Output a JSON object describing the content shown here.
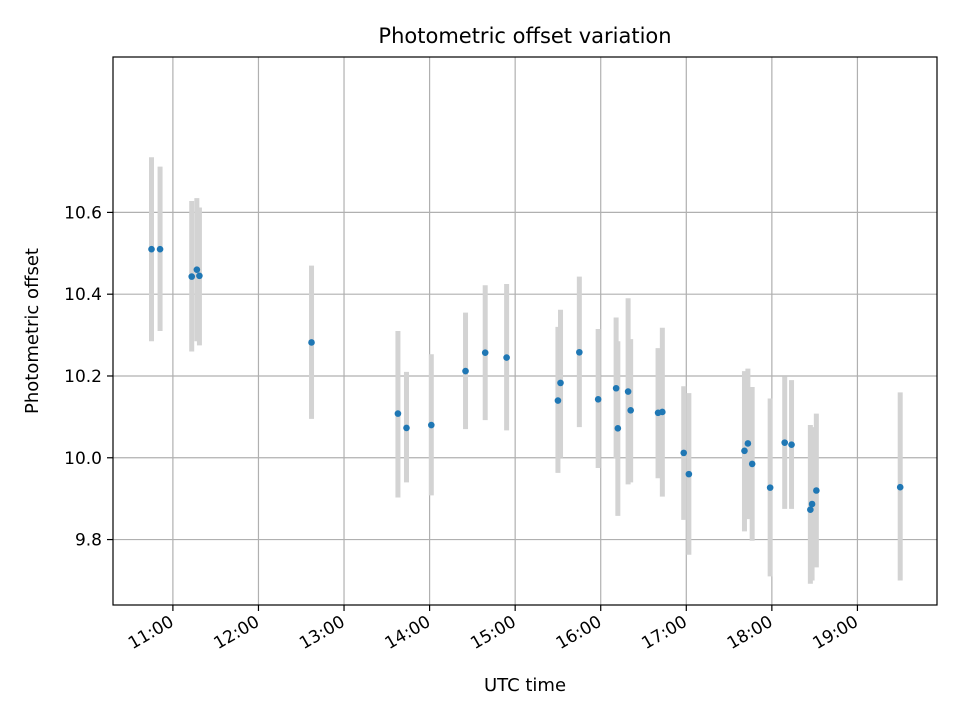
{
  "chart_data": {
    "type": "scatter",
    "title": "Photometric offset variation",
    "xlabel": "UTC time",
    "ylabel": "Photometric offset",
    "x_unit": "UTC hour of day",
    "xlim": [
      10.3,
      19.93
    ],
    "ylim": [
      9.64,
      10.98
    ],
    "grid": true,
    "x_ticks": [
      {
        "value": 11,
        "label": "11:00"
      },
      {
        "value": 12,
        "label": "12:00"
      },
      {
        "value": 13,
        "label": "13:00"
      },
      {
        "value": 14,
        "label": "14:00"
      },
      {
        "value": 15,
        "label": "15:00"
      },
      {
        "value": 16,
        "label": "16:00"
      },
      {
        "value": 17,
        "label": "17:00"
      },
      {
        "value": 18,
        "label": "18:00"
      },
      {
        "value": 19,
        "label": "19:00"
      }
    ],
    "y_ticks": [
      {
        "value": 9.8,
        "label": "9.8"
      },
      {
        "value": 10.0,
        "label": "10.0"
      },
      {
        "value": 10.2,
        "label": "10.2"
      },
      {
        "value": 10.4,
        "label": "10.4"
      },
      {
        "value": 10.6,
        "label": "10.6"
      }
    ],
    "colors": {
      "point": "#1f77b4",
      "errorbar": "#d3d3d3",
      "grid": "#b0b0b0",
      "frame": "#000000"
    },
    "points": [
      {
        "x": 10.75,
        "y": 10.51,
        "err_low": 10.285,
        "err_high": 10.735
      },
      {
        "x": 10.85,
        "y": 10.51,
        "err_low": 10.31,
        "err_high": 10.712
      },
      {
        "x": 11.22,
        "y": 10.443,
        "err_low": 10.26,
        "err_high": 10.628
      },
      {
        "x": 11.28,
        "y": 10.46,
        "err_low": 10.285,
        "err_high": 10.635
      },
      {
        "x": 11.31,
        "y": 10.445,
        "err_low": 10.275,
        "err_high": 10.612
      },
      {
        "x": 12.62,
        "y": 10.282,
        "err_low": 10.095,
        "err_high": 10.47
      },
      {
        "x": 13.63,
        "y": 10.108,
        "err_low": 9.903,
        "err_high": 10.31
      },
      {
        "x": 13.73,
        "y": 10.073,
        "err_low": 9.94,
        "err_high": 10.21
      },
      {
        "x": 14.02,
        "y": 10.08,
        "err_low": 9.908,
        "err_high": 10.253
      },
      {
        "x": 14.42,
        "y": 10.212,
        "err_low": 10.07,
        "err_high": 10.355
      },
      {
        "x": 14.65,
        "y": 10.257,
        "err_low": 10.092,
        "err_high": 10.422
      },
      {
        "x": 14.9,
        "y": 10.245,
        "err_low": 10.067,
        "err_high": 10.425
      },
      {
        "x": 15.5,
        "y": 10.14,
        "err_low": 9.963,
        "err_high": 10.32
      },
      {
        "x": 15.53,
        "y": 10.183,
        "err_low": 10.0,
        "err_high": 10.362
      },
      {
        "x": 15.75,
        "y": 10.258,
        "err_low": 10.075,
        "err_high": 10.443
      },
      {
        "x": 15.97,
        "y": 10.143,
        "err_low": 9.975,
        "err_high": 10.315
      },
      {
        "x": 16.18,
        "y": 10.17,
        "err_low": 9.998,
        "err_high": 10.343
      },
      {
        "x": 16.2,
        "y": 10.072,
        "err_low": 9.858,
        "err_high": 10.285
      },
      {
        "x": 16.32,
        "y": 10.162,
        "err_low": 9.935,
        "err_high": 10.39
      },
      {
        "x": 16.35,
        "y": 10.116,
        "err_low": 9.94,
        "err_high": 10.29
      },
      {
        "x": 16.67,
        "y": 10.11,
        "err_low": 9.95,
        "err_high": 10.268
      },
      {
        "x": 16.72,
        "y": 10.112,
        "err_low": 9.905,
        "err_high": 10.318
      },
      {
        "x": 16.97,
        "y": 10.012,
        "err_low": 9.848,
        "err_high": 10.175
      },
      {
        "x": 17.03,
        "y": 9.96,
        "err_low": 9.763,
        "err_high": 10.158
      },
      {
        "x": 17.68,
        "y": 10.017,
        "err_low": 9.82,
        "err_high": 10.212
      },
      {
        "x": 17.72,
        "y": 10.035,
        "err_low": 9.85,
        "err_high": 10.218
      },
      {
        "x": 17.77,
        "y": 9.985,
        "err_low": 9.797,
        "err_high": 10.173
      },
      {
        "x": 17.98,
        "y": 9.927,
        "err_low": 9.71,
        "err_high": 10.145
      },
      {
        "x": 18.15,
        "y": 10.037,
        "err_low": 9.875,
        "err_high": 10.198
      },
      {
        "x": 18.23,
        "y": 10.032,
        "err_low": 9.875,
        "err_high": 10.19
      },
      {
        "x": 18.45,
        "y": 9.873,
        "err_low": 9.692,
        "err_high": 10.08
      },
      {
        "x": 18.47,
        "y": 9.887,
        "err_low": 9.7,
        "err_high": 10.075
      },
      {
        "x": 18.52,
        "y": 9.92,
        "err_low": 9.732,
        "err_high": 10.108
      },
      {
        "x": 19.5,
        "y": 9.928,
        "err_low": 9.7,
        "err_high": 10.16
      }
    ]
  }
}
